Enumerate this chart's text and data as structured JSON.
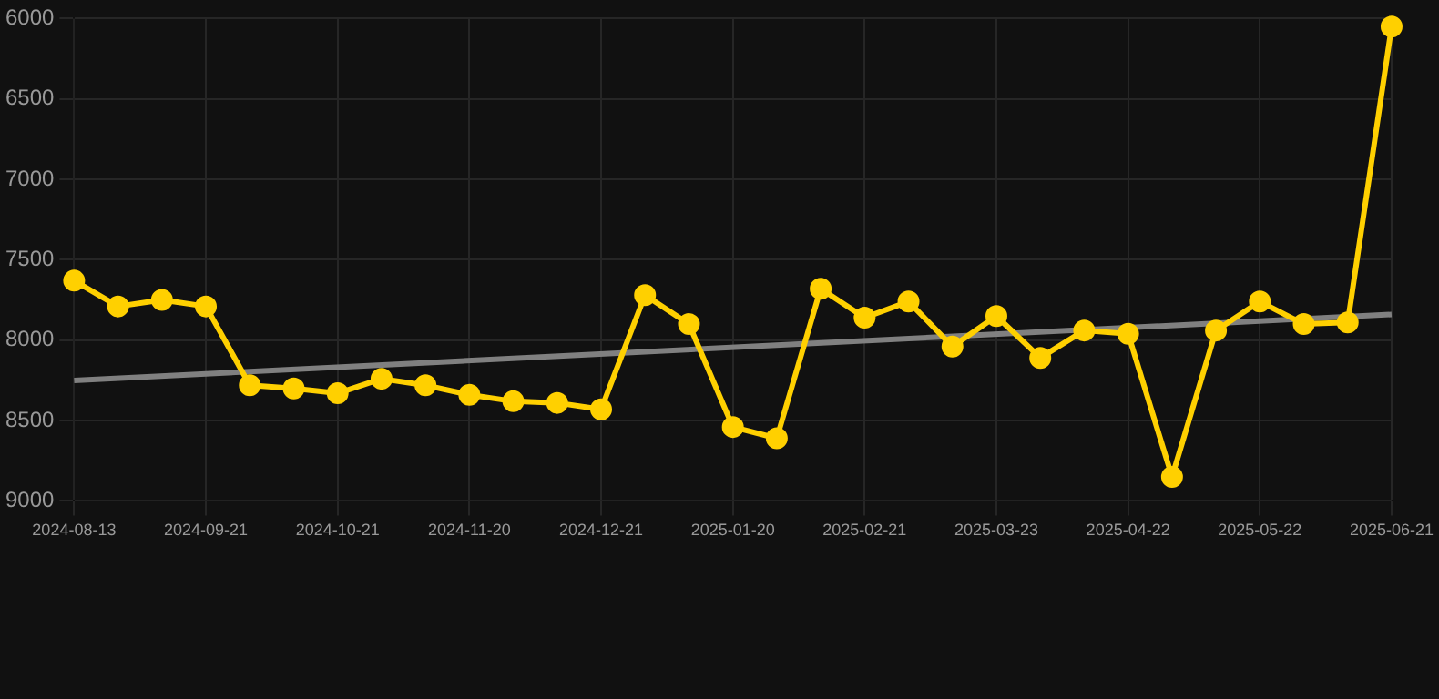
{
  "chart_data": {
    "type": "line",
    "categories": [
      "2024-08-13",
      null,
      null,
      "2024-09-21",
      null,
      null,
      "2024-10-21",
      null,
      null,
      "2024-11-20",
      null,
      null,
      "2024-12-21",
      null,
      null,
      "2025-01-20",
      null,
      null,
      "2025-02-21",
      null,
      null,
      "2025-03-23",
      null,
      null,
      "2025-04-22",
      null,
      null,
      "2025-05-22",
      null,
      null,
      "2025-06-21"
    ],
    "series": [
      {
        "color": "#ffd000",
        "marker": "circle",
        "values": [
          7630,
          7790,
          7750,
          7790,
          8280,
          8300,
          8330,
          8240,
          8280,
          8340,
          8380,
          8390,
          8430,
          7720,
          7900,
          8540,
          8610,
          7680,
          7860,
          7760,
          8040,
          7850,
          8110,
          7940,
          7960,
          8850,
          7940,
          7760,
          7900,
          7890,
          6050
        ]
      },
      {
        "type": "line",
        "color": "#808080",
        "marker": "none",
        "values": [
          8250,
          null,
          null,
          null,
          null,
          null,
          null,
          null,
          null,
          null,
          null,
          null,
          null,
          null,
          null,
          null,
          null,
          null,
          null,
          null,
          null,
          null,
          null,
          null,
          null,
          null,
          null,
          null,
          null,
          null,
          7840
        ]
      }
    ],
    "ylim": [
      9000,
      6000
    ],
    "yticks": [
      6000,
      6500,
      7000,
      7500,
      8000,
      8500,
      9000
    ],
    "grid": true,
    "legend": false
  }
}
